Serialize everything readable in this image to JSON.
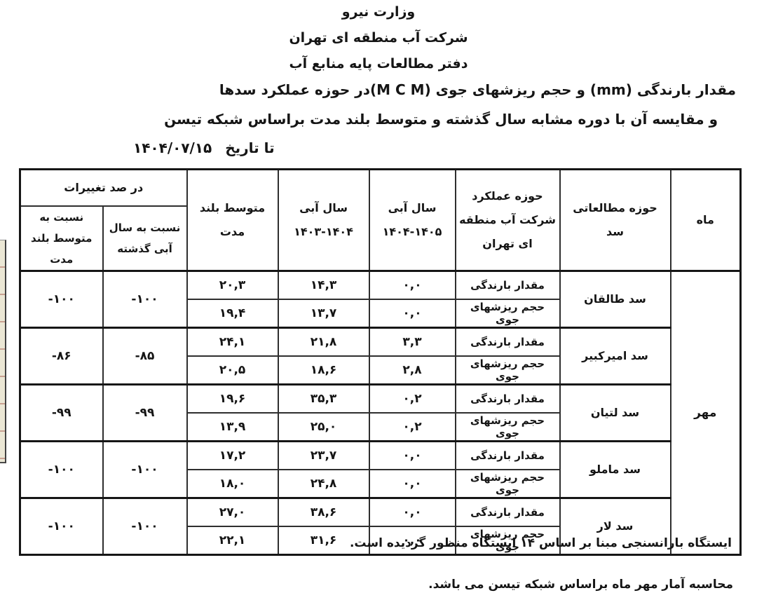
{
  "header": {
    "ministry": "وزارت نیرو",
    "company": "شرکت آب منطقه ای تهران",
    "office": "دفتر مطالعات پایه منابع آب",
    "title": "مقدار بارندگی (mm) و حجم ریزشهای جوی (M C M)در حوزه عملکرد سدها",
    "subtitle": "و مقایسه آن با دوره مشابه سال گذشته و متوسط بلند مدت براساس شبکه تیسن",
    "date_label": "تا تاریخ",
    "date_value": "۱۴۰۴/۰۷/۱۵"
  },
  "table": {
    "headers": {
      "month": "ماه",
      "dam_basin": "حوزه مطالعاتی سد",
      "company_scope": "حوزه عملکرد شرکت آب منطقه ای تهران",
      "water_year_label": "سال آبی",
      "year_current_range": "۱۴۰۴-۱۴۰۵",
      "year_previous_range": "۱۴۰۳-۱۴۰۴",
      "long_term_avg": "متوسط بلند مدت",
      "percent_change": "در صد تغییرات",
      "vs_last_year": "نسبت به سال آبی گذشته",
      "vs_long_term": "نسبت به متوسط بلند مدت"
    },
    "month_value": "مهر",
    "row_labels": {
      "rain": "مقدار بارندگی",
      "volume": "حجم ریزشهای جوی"
    },
    "dams": [
      {
        "name": "سد طالقان",
        "rain": {
          "current": "۰,۰",
          "previous": "۱۴,۳",
          "avg": "۲۰,۳"
        },
        "volume": {
          "current": "۰,۰",
          "previous": "۱۳,۷",
          "avg": "۱۹,۴"
        },
        "pct_vs_last_year": "-۱۰۰",
        "pct_vs_long_term": "-۱۰۰"
      },
      {
        "name": "سد امیرکبیر",
        "rain": {
          "current": "۳,۳",
          "previous": "۲۱,۸",
          "avg": "۲۴,۱"
        },
        "volume": {
          "current": "۲,۸",
          "previous": "۱۸,۶",
          "avg": "۲۰,۵"
        },
        "pct_vs_last_year": "-۸۵",
        "pct_vs_long_term": "-۸۶"
      },
      {
        "name": "سد لتیان",
        "rain": {
          "current": "۰,۲",
          "previous": "۳۵,۳",
          "avg": "۱۹,۶"
        },
        "volume": {
          "current": "۰,۲",
          "previous": "۲۵,۰",
          "avg": "۱۳,۹"
        },
        "pct_vs_last_year": "-۹۹",
        "pct_vs_long_term": "-۹۹"
      },
      {
        "name": "سد ماملو",
        "rain": {
          "current": "۰,۰",
          "previous": "۲۳,۷",
          "avg": "۱۷,۲"
        },
        "volume": {
          "current": "۰,۰",
          "previous": "۲۴,۸",
          "avg": "۱۸,۰"
        },
        "pct_vs_last_year": "-۱۰۰",
        "pct_vs_long_term": "-۱۰۰"
      },
      {
        "name": "سد لار",
        "rain": {
          "current": "۰,۰",
          "previous": "۳۸,۶",
          "avg": "۲۷,۰"
        },
        "volume": {
          "current": "۰,۰",
          "previous": "۳۱,۶",
          "avg": "۲۲,۱"
        },
        "pct_vs_last_year": "-۱۰۰",
        "pct_vs_long_term": "-۱۰۰"
      }
    ]
  },
  "footnotes": [
    "ایستگاه بارانسنجی مبنا بر اساس ۱۴ ایستگاه منظور گردیده است.",
    "محاسبه آمار مهر ماه براساس شبکه تیسن می باشد."
  ]
}
